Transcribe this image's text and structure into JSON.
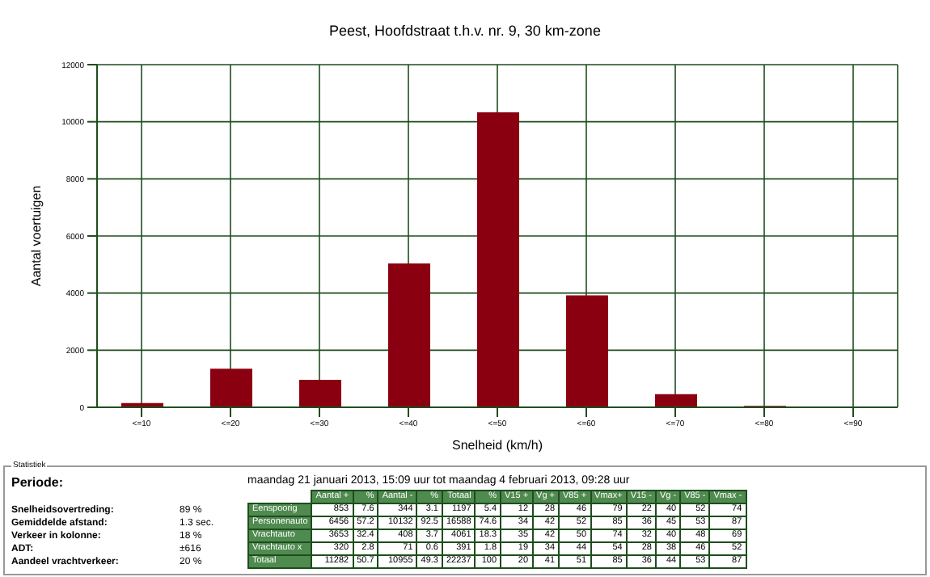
{
  "chart_data": {
    "type": "bar",
    "title": "Peest, Hoofdstraat t.h.v. nr. 9, 30 km-zone",
    "xlabel": "Snelheid (km/h)",
    "ylabel": "Aantal voertuigen",
    "categories": [
      "<=10",
      "<=20",
      "<=30",
      "<=40",
      "<=50",
      "<=60",
      "<=70",
      "<=80",
      "<=90"
    ],
    "values": [
      150,
      1350,
      960,
      5040,
      10330,
      3920,
      460,
      50,
      0
    ],
    "color": "#8b0010",
    "ylim": [
      0,
      12000
    ],
    "yticks": [
      0,
      2000,
      4000,
      6000,
      8000,
      10000,
      12000
    ],
    "grid": true,
    "legend": false,
    "annotations": [
      "Statistiek",
      "Periode:",
      "maandag 21 januari 2013, 15:09 uur tot maandag 4 februari 2013, 09:28 uur",
      "Snelheidsovertreding:",
      "89 %",
      "Gemiddelde afstand:",
      "1.3 sec.",
      "Verkeer in kolonne:",
      "18 %",
      "ADT:",
      "±616",
      "Aandeel vrachtverkeer:",
      "20 %",
      "Aantal +",
      "%",
      "Aantal -",
      "%",
      "Totaal",
      "%",
      "V15 +",
      "Vg +",
      "V85 +",
      "Vmax+",
      "V15 -",
      "Vg -",
      "V85 -",
      "Vmax -",
      "Eenspoorig",
      "853",
      "7.6",
      "344",
      "3.1",
      "1197",
      "5.4",
      "12",
      "28",
      "46",
      "79",
      "22",
      "40",
      "52",
      "74",
      "Personenauto",
      "6456",
      "57.2",
      "10132",
      "92.5",
      "16588",
      "74.6",
      "34",
      "42",
      "52",
      "85",
      "36",
      "45",
      "53",
      "87",
      "Vrachtauto",
      "3653",
      "32.4",
      "408",
      "3.7",
      "4061",
      "18.3",
      "35",
      "42",
      "50",
      "74",
      "32",
      "40",
      "48",
      "69",
      "Vrachtauto x",
      "320",
      "2.8",
      "71",
      "0.6",
      "391",
      "1.8",
      "19",
      "34",
      "44",
      "54",
      "28",
      "38",
      "46",
      "52",
      "Totaal",
      "11282",
      "50.7",
      "10955",
      "49.3",
      "22237",
      "100",
      "20",
      "41",
      "51",
      "85",
      "36",
      "44",
      "53",
      "87"
    ]
  }
}
